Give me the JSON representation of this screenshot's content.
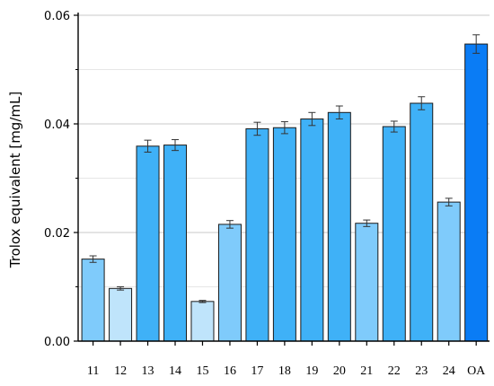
{
  "chart_data": {
    "type": "bar",
    "title": "",
    "xlabel": "",
    "ylabel": "Trolox equivalent [mg/mL]",
    "ylim": [
      0,
      0.06
    ],
    "yticks": [
      "0.00",
      "0.02",
      "0.04",
      "0.06"
    ],
    "grid": true,
    "legend": "none",
    "categories": [
      "11",
      "12",
      "13",
      "14",
      "15",
      "16",
      "17",
      "18",
      "19",
      "20",
      "21",
      "22",
      "23",
      "24",
      "OA"
    ],
    "values": [
      0.0151,
      0.0097,
      0.0359,
      0.0361,
      0.0073,
      0.0215,
      0.0391,
      0.0393,
      0.0409,
      0.0421,
      0.0217,
      0.0395,
      0.0438,
      0.0256,
      0.0547
    ],
    "errors": [
      0.0006,
      0.0003,
      0.0011,
      0.001,
      0.0002,
      0.0007,
      0.0012,
      0.0011,
      0.0012,
      0.0012,
      0.0006,
      0.001,
      0.0012,
      0.0007,
      0.0017
    ],
    "colors": [
      "#7fcbfb",
      "#bfe4fb",
      "#3fb1f7",
      "#3fb1f7",
      "#bfe4fb",
      "#7fcbfb",
      "#3fb1f7",
      "#3fb1f7",
      "#3fb1f7",
      "#3fb1f7",
      "#7fcbfb",
      "#3fb1f7",
      "#3fb1f7",
      "#7fcbfb",
      "#0a7cf5"
    ]
  }
}
